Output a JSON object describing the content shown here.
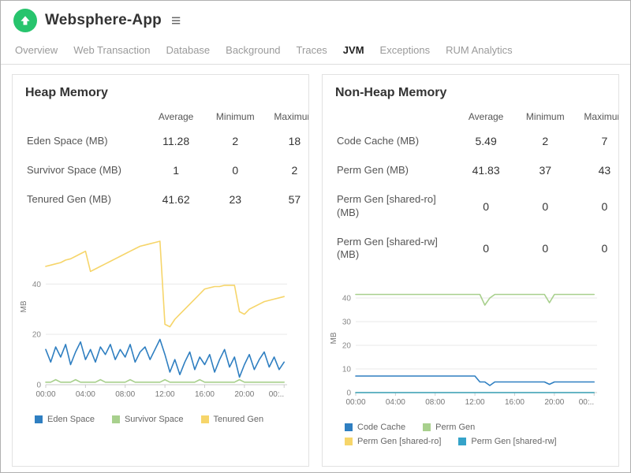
{
  "header": {
    "title": "Websphere-App"
  },
  "icons": {
    "menu": "≡"
  },
  "tabs": [
    {
      "label": "Overview"
    },
    {
      "label": "Web Transaction"
    },
    {
      "label": "Database"
    },
    {
      "label": "Background"
    },
    {
      "label": "Traces"
    },
    {
      "label": "JVM"
    },
    {
      "label": "Exceptions"
    },
    {
      "label": "RUM Analytics"
    }
  ],
  "active_tab": "JVM",
  "panels": [
    {
      "title": "Heap Memory",
      "columns": [
        "Average",
        "Minimum",
        "Maximum"
      ],
      "rows": [
        {
          "label": "Eden Space (MB)",
          "avg": "11.28",
          "min": "2",
          "max": "18"
        },
        {
          "label": "Survivor Space (MB)",
          "avg": "1",
          "min": "0",
          "max": "2"
        },
        {
          "label": "Tenured Gen (MB)",
          "avg": "41.62",
          "min": "23",
          "max": "57"
        }
      ]
    },
    {
      "title": "Non-Heap Memory",
      "columns": [
        "Average",
        "Minimum",
        "Maximum"
      ],
      "rows": [
        {
          "label": "Code Cache (MB)",
          "avg": "5.49",
          "min": "2",
          "max": "7"
        },
        {
          "label": "Perm Gen (MB)",
          "avg": "41.83",
          "min": "37",
          "max": "43"
        },
        {
          "label": "Perm Gen [shared-ro] (MB)",
          "avg": "0",
          "min": "0",
          "max": "0"
        },
        {
          "label": "Perm Gen [shared-rw] (MB)",
          "avg": "0",
          "min": "0",
          "max": "0"
        }
      ]
    }
  ],
  "chart_data": [
    {
      "type": "line",
      "title": "Heap Memory",
      "ylabel": "MB",
      "ylim": [
        0,
        62
      ],
      "yticks": [
        0,
        20,
        40
      ],
      "xlim": [
        0,
        24.3
      ],
      "xticks": [
        0,
        4,
        8,
        12,
        16,
        20,
        24
      ],
      "xtick_labels": [
        "00:00",
        "04:00",
        "08:00",
        "12:00",
        "16:00",
        "20:00",
        "00:.."
      ],
      "x_step_hours": 0.5,
      "grid": "horizontal",
      "legend_position": "bottom",
      "series": [
        {
          "name": "Eden Space",
          "color": "#2f7fc1",
          "values": [
            14,
            9,
            15,
            11,
            16,
            8,
            13,
            17,
            10,
            14,
            9,
            15,
            12,
            16,
            10,
            14,
            11,
            16,
            9,
            13,
            15,
            10,
            14,
            18,
            12,
            5,
            10,
            4,
            9,
            13,
            6,
            11,
            8,
            12,
            5,
            10,
            14,
            7,
            11,
            3,
            8,
            12,
            6,
            10,
            13,
            7,
            11,
            6,
            9
          ]
        },
        {
          "name": "Survivor Space",
          "color": "#a8d08d",
          "values": [
            1,
            1,
            2,
            1,
            1,
            1,
            2,
            1,
            1,
            1,
            1,
            2,
            1,
            1,
            1,
            1,
            1,
            2,
            1,
            1,
            1,
            1,
            1,
            1,
            2,
            1,
            1,
            1,
            1,
            1,
            1,
            2,
            1,
            1,
            1,
            1,
            1,
            1,
            1,
            2,
            1,
            1,
            1,
            1,
            1,
            1,
            1,
            1,
            1
          ]
        },
        {
          "name": "Tenured Gen",
          "color": "#f6d56a",
          "values": [
            47,
            47.5,
            48,
            48.5,
            49.5,
            50,
            51,
            52,
            53,
            45,
            46,
            47,
            48,
            49,
            50,
            51,
            52,
            53,
            54,
            55,
            55.5,
            56,
            56.5,
            57,
            24,
            23,
            26,
            28,
            30,
            32,
            34,
            36,
            38,
            38.5,
            39,
            39,
            39.5,
            39.5,
            39.5,
            29,
            28,
            30,
            31,
            32,
            33,
            33.5,
            34,
            34.5,
            35
          ]
        }
      ]
    },
    {
      "type": "line",
      "title": "Non-Heap Memory",
      "ylabel": "MB",
      "ylim": [
        0,
        46
      ],
      "yticks": [
        0,
        10,
        20,
        30,
        40
      ],
      "xlim": [
        0,
        24.3
      ],
      "xticks": [
        0,
        4,
        8,
        12,
        16,
        20,
        24
      ],
      "xtick_labels": [
        "00:00",
        "04:00",
        "08:00",
        "12:00",
        "16:00",
        "20:00",
        "00:.."
      ],
      "x_step_hours": 0.5,
      "grid": "horizontal",
      "legend_position": "bottom",
      "series": [
        {
          "name": "Code Cache",
          "color": "#2f7fc1",
          "values": [
            7,
            7,
            7,
            7,
            7,
            7,
            7,
            7,
            7,
            7,
            7,
            7,
            7,
            7,
            7,
            7,
            7,
            7,
            7,
            7,
            7,
            7,
            7,
            7,
            7,
            4.5,
            4.5,
            3,
            4.5,
            4.5,
            4.5,
            4.5,
            4.5,
            4.5,
            4.5,
            4.5,
            4.5,
            4.5,
            4.5,
            3.5,
            4.5,
            4.5,
            4.5,
            4.5,
            4.5,
            4.5,
            4.5,
            4.5,
            4.5
          ]
        },
        {
          "name": "Perm Gen",
          "color": "#a8d08d",
          "values": [
            41.5,
            41.5,
            41.5,
            41.5,
            41.5,
            41.5,
            41.5,
            41.5,
            41.5,
            41.5,
            41.5,
            41.5,
            41.5,
            41.5,
            41.5,
            41.5,
            41.5,
            41.5,
            41.5,
            41.5,
            41.5,
            41.5,
            41.5,
            41.5,
            41.5,
            41.5,
            37,
            40,
            41.5,
            41.5,
            41.5,
            41.5,
            41.5,
            41.5,
            41.5,
            41.5,
            41.5,
            41.5,
            41.5,
            38,
            41.5,
            41.5,
            41.5,
            41.5,
            41.5,
            41.5,
            41.5,
            41.5,
            41.5
          ]
        },
        {
          "name": "Perm Gen [shared-ro]",
          "color": "#f6d56a",
          "values": [
            0,
            0,
            0,
            0,
            0,
            0,
            0,
            0,
            0,
            0,
            0,
            0,
            0,
            0,
            0,
            0,
            0,
            0,
            0,
            0,
            0,
            0,
            0,
            0,
            0,
            0,
            0,
            0,
            0,
            0,
            0,
            0,
            0,
            0,
            0,
            0,
            0,
            0,
            0,
            0,
            0,
            0,
            0,
            0,
            0,
            0,
            0,
            0,
            0
          ]
        },
        {
          "name": "Perm Gen [shared-rw]",
          "color": "#35a3c9",
          "values": [
            0,
            0,
            0,
            0,
            0,
            0,
            0,
            0,
            0,
            0,
            0,
            0,
            0,
            0,
            0,
            0,
            0,
            0,
            0,
            0,
            0,
            0,
            0,
            0,
            0,
            0,
            0,
            0,
            0,
            0,
            0,
            0,
            0,
            0,
            0,
            0,
            0,
            0,
            0,
            0,
            0,
            0,
            0,
            0,
            0,
            0,
            0,
            0,
            0
          ]
        }
      ]
    }
  ]
}
